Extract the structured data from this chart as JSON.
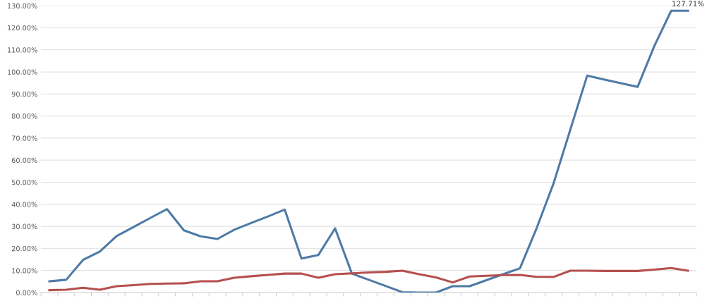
{
  "chart_data": {
    "type": "line",
    "categories": [
      null,
      null,
      null,
      null,
      null,
      null,
      null,
      null,
      null,
      null,
      null,
      null,
      null,
      null,
      null,
      null,
      null,
      null,
      null,
      null,
      null,
      null,
      null,
      null,
      null,
      null,
      null,
      null,
      null,
      null,
      null,
      null,
      null,
      null,
      null,
      null,
      null,
      null,
      null
    ],
    "series": [
      {
        "color": "#4f7ba6",
        "values": [
          5.1,
          5.8,
          14.8,
          18.6,
          25.6,
          29.7,
          33.8,
          37.8,
          28.2,
          25.5,
          24.3,
          28.5,
          31.5,
          34.5,
          37.6,
          15.4,
          17.0,
          29.1,
          8.6,
          5.8,
          3.0,
          0.2,
          0,
          0,
          2.9,
          2.9,
          5.6,
          8.3,
          11.0,
          29.3,
          49.5,
          73.9,
          98.3,
          96.6,
          94.9,
          93.2,
          111.8,
          127.71,
          127.71
        ],
        "value_labels": [
          null,
          null,
          null,
          null,
          null,
          null,
          null,
          null,
          null,
          null,
          null,
          null,
          null,
          null,
          null,
          null,
          null,
          null,
          null,
          null,
          null,
          null,
          null,
          null,
          null,
          null,
          null,
          null,
          null,
          null,
          null,
          null,
          null,
          null,
          null,
          null,
          null,
          null,
          "127.71%"
        ]
      },
      {
        "color": "#b5504f",
        "values": [
          1.1,
          1.3,
          2.2,
          1.3,
          2.9,
          3.4,
          3.9,
          4.1,
          4.2,
          5.1,
          5.1,
          6.7,
          7.4,
          8.0,
          8.6,
          8.6,
          6.7,
          8.3,
          8.7,
          9.1,
          9.4,
          9.9,
          8.3,
          6.9,
          4.6,
          7.3,
          7.6,
          7.9,
          8.0,
          7.1,
          7.1,
          9.9,
          9.9,
          9.8,
          9.8,
          9.8,
          10.4,
          11.1,
          9.9
        ]
      }
    ],
    "ylim": [
      0,
      130
    ],
    "yticks": [
      {
        "value": 0,
        "label": "0.00%"
      },
      {
        "value": 10,
        "label": "10.00%"
      },
      {
        "value": 20,
        "label": "20.00%"
      },
      {
        "value": 30,
        "label": "30.00%"
      },
      {
        "value": 40,
        "label": "40.00%"
      },
      {
        "value": 50,
        "label": "50.00%"
      },
      {
        "value": 60,
        "label": "60.00%"
      },
      {
        "value": 70,
        "label": "70.00%"
      },
      {
        "value": 80,
        "label": "80.00%"
      },
      {
        "value": 90,
        "label": "90.00%"
      },
      {
        "value": 100,
        "label": "100.00%"
      },
      {
        "value": 110,
        "label": "110.00%"
      },
      {
        "value": 120,
        "label": "120.00%"
      },
      {
        "value": 130,
        "label": "130.00%"
      }
    ],
    "grid": "y",
    "tick_labels": "y",
    "legend": false,
    "marker": "none",
    "line_style": "solid"
  }
}
